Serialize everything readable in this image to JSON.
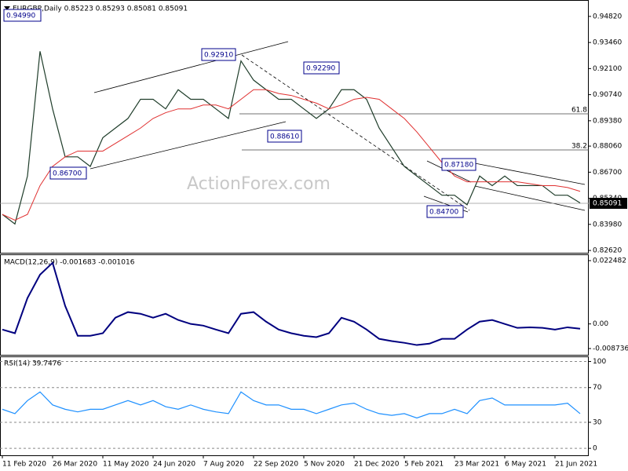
{
  "chart_data": [
    {
      "type": "line",
      "title": "EURGBP,Daily 0.85223 0.85293 0.85081 0.85091",
      "series": [
        {
          "color": "#1f3d2a",
          "values": [
            0.845,
            0.84,
            0.865,
            0.93,
            0.9,
            0.875,
            0.875,
            0.87,
            0.885,
            0.89,
            0.895,
            0.905,
            0.905,
            0.9,
            0.91,
            0.905,
            0.905,
            0.9,
            0.895,
            0.925,
            0.915,
            0.91,
            0.905,
            0.905,
            0.9,
            0.895,
            0.9,
            0.91,
            0.91,
            0.905,
            0.89,
            0.88,
            0.87,
            0.865,
            0.86,
            0.855,
            0.855,
            0.85,
            0.865,
            0.86,
            0.865,
            0.86,
            0.86,
            0.86,
            0.855,
            0.855,
            0.851
          ]
        },
        {
          "color": "#e03030",
          "values": [
            0.845,
            0.842,
            0.845,
            0.86,
            0.87,
            0.875,
            0.878,
            0.878,
            0.878,
            0.882,
            0.886,
            0.89,
            0.895,
            0.898,
            0.9,
            0.9,
            0.902,
            0.902,
            0.9,
            0.905,
            0.91,
            0.91,
            0.908,
            0.907,
            0.905,
            0.903,
            0.9,
            0.902,
            0.905,
            0.906,
            0.905,
            0.9,
            0.895,
            0.888,
            0.88,
            0.872,
            0.865,
            0.862,
            0.862,
            0.862,
            0.862,
            0.862,
            0.861,
            0.86,
            0.86,
            0.859,
            0.857
          ]
        }
      ],
      "ylim": [
        0.825,
        0.9547
      ],
      "yticks": [
        {
          "value": 0.9482,
          "label": "0.94820"
        },
        {
          "value": 0.9346,
          "label": "0.93460"
        },
        {
          "value": 0.921,
          "label": "0.92100"
        },
        {
          "value": 0.9074,
          "label": "0.90740"
        },
        {
          "value": 0.8938,
          "label": "0.89380"
        },
        {
          "value": 0.8806,
          "label": "0.88060"
        },
        {
          "value": 0.867,
          "label": "0.86700"
        },
        {
          "value": 0.8534,
          "label": "0.85340"
        },
        {
          "value": 0.8398,
          "label": "0.83980"
        },
        {
          "value": 0.8262,
          "label": "0.82620"
        }
      ],
      "annotations": [
        "0.94990",
        "0.92910",
        "0.92290",
        "0.88610",
        "0.86700",
        "0.87180",
        "0.84700"
      ],
      "fib_labels": [
        "61.8",
        "38.2"
      ],
      "current_price": "0.85091",
      "watermark": "ActionForex.com",
      "grid": false
    },
    {
      "type": "line",
      "title": "MACD(12,26,9) -0.001683 -0.001016",
      "series": [
        {
          "color": "#00007f",
          "values": [
            -0.002,
            -0.0033,
            0.0092,
            0.0175,
            0.0217,
            0.0064,
            -0.0042,
            -0.0042,
            -0.0033,
            0.0022,
            0.0042,
            0.0036,
            0.0022,
            0.0036,
            0.0014,
            0,
            -0.0006,
            -0.002,
            -0.0033,
            0.0036,
            0.0042,
            0.0008,
            -0.002,
            -0.0033,
            -0.0042,
            -0.0047,
            -0.0033,
            0.0022,
            0.0008,
            -0.002,
            -0.0053,
            -0.0061,
            -0.0067,
            -0.0075,
            -0.007,
            -0.0053,
            -0.0053,
            -0.002,
            0.0008,
            0.0014,
            0,
            -0.0014,
            -0.0012,
            -0.0014,
            -0.002,
            -0.0012,
            -0.0017
          ]
        }
      ],
      "ylim": [
        -0.01097,
        0.02443
      ],
      "yticks": [
        0.022482,
        {
          "value": 0,
          "label": "0.00"
        },
        -0.008736
      ],
      "grid": false
    },
    {
      "type": "line",
      "title": "RSI(14) 39.7476",
      "categories": [
        "11 Feb 2020",
        null,
        null,
        null,
        "26 Mar 2020",
        null,
        null,
        null,
        "11 May 2020",
        null,
        null,
        null,
        "24 Jun 2020",
        null,
        null,
        null,
        "7 Aug 2020",
        null,
        null,
        null,
        "22 Sep 2020",
        null,
        null,
        null,
        "5 Nov 2020",
        null,
        null,
        null,
        "21 Dec 2020",
        null,
        null,
        null,
        "5 Feb 2021",
        null,
        null,
        null,
        "23 Mar 2021",
        null,
        null,
        null,
        "6 May 2021",
        null,
        null,
        null,
        "21 Jun 2021",
        null,
        null
      ],
      "series": [
        {
          "color": "#1e90ff",
          "values": [
            45,
            40,
            55,
            65,
            50,
            45,
            42,
            45,
            45,
            50,
            55,
            50,
            55,
            48,
            45,
            50,
            45,
            42,
            40,
            65,
            55,
            50,
            50,
            45,
            45,
            40,
            45,
            50,
            52,
            45,
            40,
            38,
            40,
            35,
            40,
            40,
            45,
            40,
            55,
            58,
            50,
            50,
            50,
            50,
            50,
            52,
            40
          ]
        }
      ],
      "ylim": [
        -8,
        105
      ],
      "yticks": [
        100,
        70,
        30,
        0
      ],
      "grid": true
    }
  ]
}
